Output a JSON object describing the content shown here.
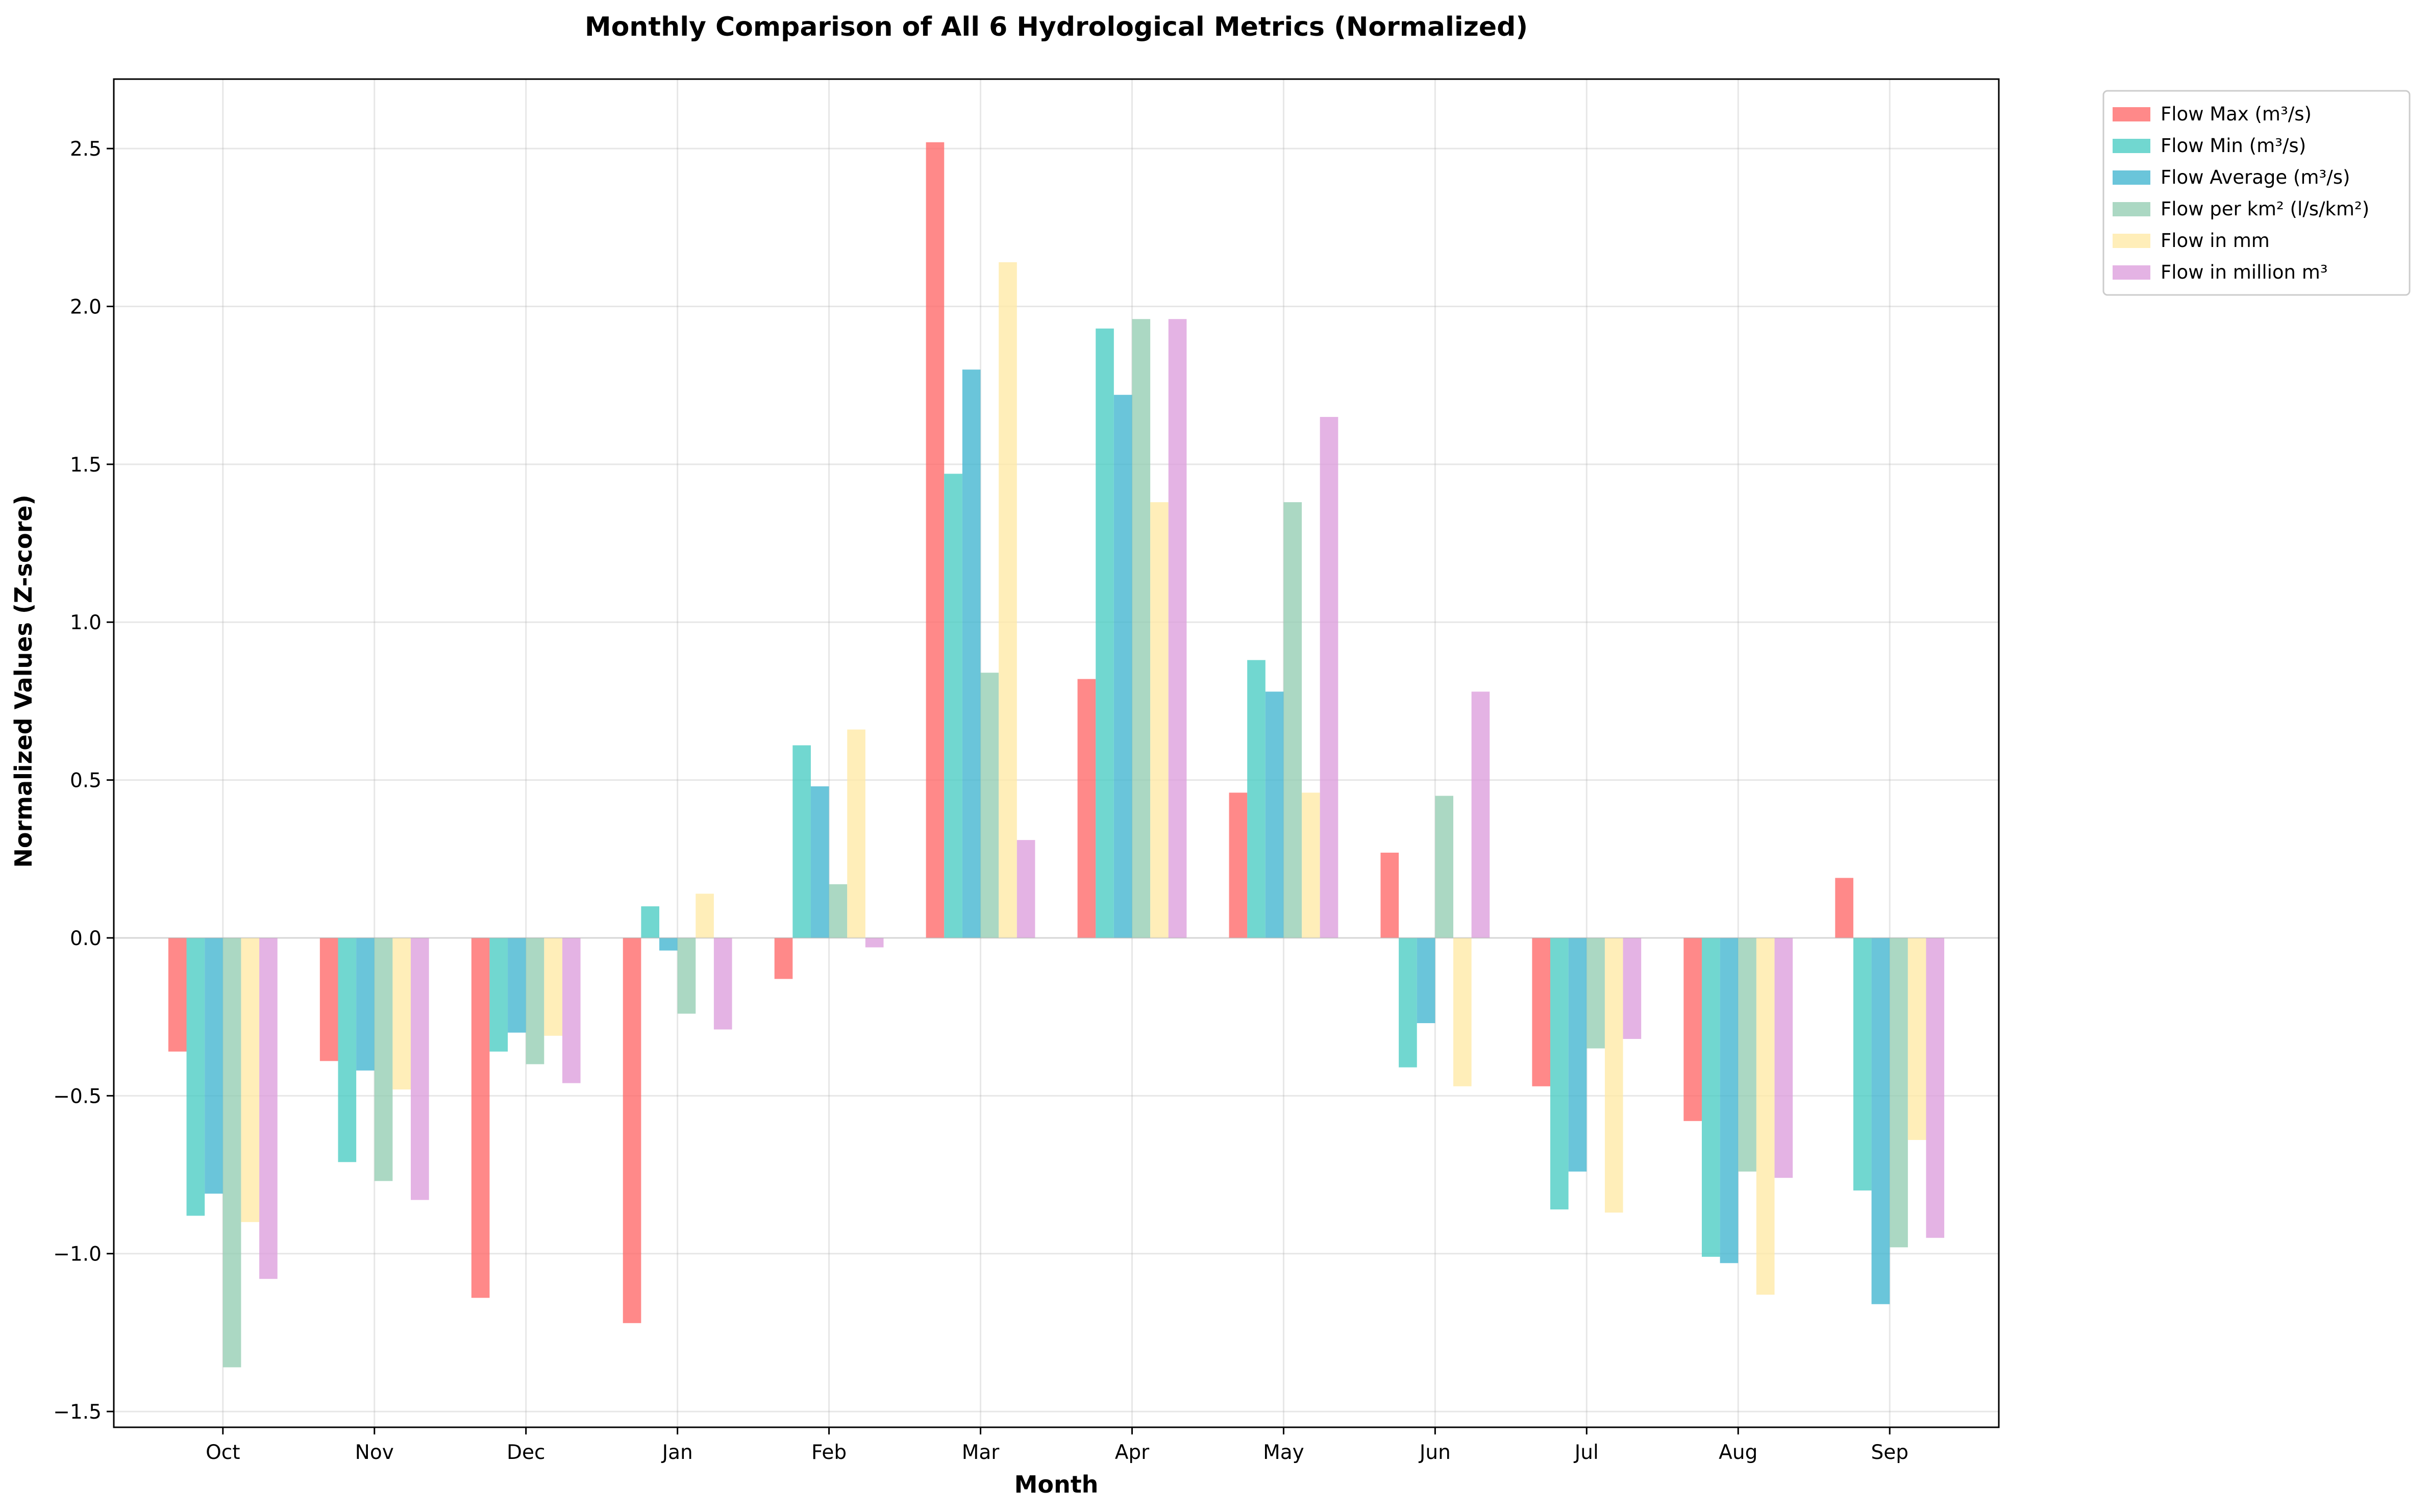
{
  "chart_data": {
    "type": "bar",
    "title": "Monthly Comparison of All 6 Hydrological Metrics (Normalized)",
    "xlabel": "Month",
    "ylabel": "Normalized Values (Z-score)",
    "categories": [
      "Oct",
      "Nov",
      "Dec",
      "Jan",
      "Feb",
      "Mar",
      "Apr",
      "May",
      "Jun",
      "Jul",
      "Aug",
      "Sep"
    ],
    "ylim": [
      -1.55,
      2.72
    ],
    "yticks": [
      -1.5,
      -1.0,
      -0.5,
      0.0,
      0.5,
      1.0,
      1.5,
      2.0,
      2.5
    ],
    "ytick_labels": [
      "−1.5",
      "−1.0",
      "−0.5",
      "0.0",
      "0.5",
      "1.0",
      "1.5",
      "2.0",
      "2.5"
    ],
    "grid": true,
    "legend_position": "outside-top-right",
    "series": [
      {
        "name": "Flow Max (m³/s)",
        "color": "#ff6b6b",
        "values": [
          -0.36,
          -0.39,
          -1.14,
          -1.22,
          -0.13,
          2.52,
          0.82,
          0.46,
          0.27,
          -0.47,
          -0.58,
          0.19
        ]
      },
      {
        "name": "Flow Min (m³/s)",
        "color": "#4ecdc4",
        "values": [
          -0.88,
          -0.71,
          -0.36,
          0.1,
          0.61,
          1.47,
          1.93,
          0.88,
          -0.41,
          -0.86,
          -1.01,
          -0.8
        ]
      },
      {
        "name": "Flow Average (m³/s)",
        "color": "#45b7d1",
        "values": [
          -0.81,
          -0.42,
          -0.3,
          -0.04,
          0.48,
          1.8,
          1.72,
          0.78,
          -0.27,
          -0.74,
          -1.03,
          -1.16
        ]
      },
      {
        "name": "Flow per km² (l/s/km²)",
        "color": "#96ceb4",
        "values": [
          -1.36,
          -0.77,
          -0.4,
          -0.24,
          0.17,
          0.84,
          1.96,
          1.38,
          0.45,
          -0.35,
          -0.74,
          -0.98
        ]
      },
      {
        "name": "Flow in mm",
        "color": "#ffeaa7",
        "values": [
          -0.9,
          -0.48,
          -0.31,
          0.14,
          0.66,
          2.14,
          1.38,
          0.46,
          -0.47,
          -0.87,
          -1.13,
          -0.64
        ]
      },
      {
        "name": "Flow in million m³",
        "color": "#dda0dd",
        "values": [
          -1.08,
          -0.83,
          -0.46,
          -0.29,
          -0.03,
          0.31,
          1.96,
          1.65,
          0.78,
          -0.32,
          -0.76,
          -0.95
        ]
      }
    ]
  }
}
